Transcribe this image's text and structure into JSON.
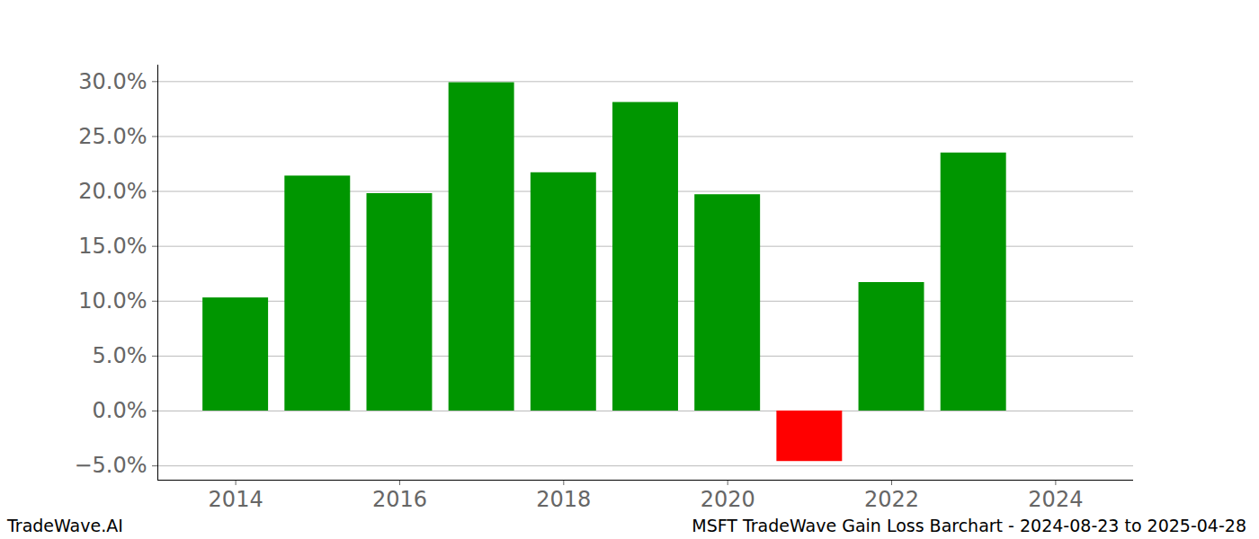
{
  "chart_data": {
    "type": "bar",
    "title": "MSFT TradeWave Gain Loss Barchart - 2024-08-23 to 2025-04-28",
    "caption": "TradeWave.AI",
    "x": [
      2014,
      2015,
      2016,
      2017,
      2018,
      2019,
      2020,
      2021,
      2022,
      2023
    ],
    "values": [
      10.3,
      21.4,
      19.8,
      29.9,
      21.7,
      28.1,
      19.7,
      -4.6,
      11.7,
      23.5
    ],
    "colors": [
      "#009600",
      "#009600",
      "#009600",
      "#009600",
      "#009600",
      "#009600",
      "#009600",
      "#ff0000",
      "#009600",
      "#009600"
    ],
    "xlim": [
      2013.05,
      2024.95
    ],
    "xticks": [
      2014,
      2016,
      2018,
      2020,
      2022,
      2024
    ],
    "ylim": [
      -6.3,
      31.5
    ],
    "yticks": [
      {
        "value": -5,
        "label": "−5.0%"
      },
      {
        "value": 0,
        "label": "0.0%"
      },
      {
        "value": 5,
        "label": "5.0%"
      },
      {
        "value": 10,
        "label": "10.0%"
      },
      {
        "value": 15,
        "label": "15.0%"
      },
      {
        "value": 20,
        "label": "20.0%"
      },
      {
        "value": 25,
        "label": "25.0%"
      },
      {
        "value": 30,
        "label": "30.0%"
      }
    ],
    "grid": true
  }
}
